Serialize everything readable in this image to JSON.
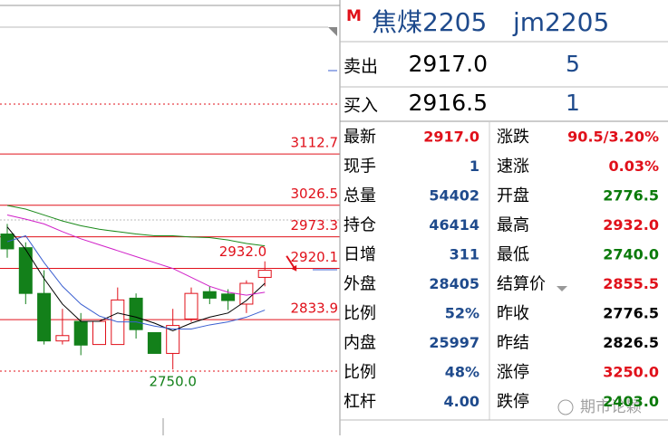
{
  "header": {
    "flag": "M",
    "title": "焦煤2205",
    "code": "jm2205"
  },
  "quote": {
    "sell": {
      "label": "卖出",
      "price": "2917.0",
      "volume": "5"
    },
    "buy": {
      "label": "买入",
      "price": "2916.5",
      "volume": "1"
    }
  },
  "stats": {
    "rows": [
      [
        {
          "label": "最新",
          "value": "2917.0",
          "color": "#e0101a"
        },
        {
          "label": "涨跌",
          "value": "90.5/3.20%",
          "color": "#e0101a"
        }
      ],
      [
        {
          "label": "现手",
          "value": "1",
          "color": "#1e4a8c"
        },
        {
          "label": "速涨",
          "value": "0.03%",
          "color": "#e0101a"
        }
      ],
      [
        {
          "label": "总量",
          "value": "54402",
          "color": "#1e4a8c"
        },
        {
          "label": "开盘",
          "value": "2776.5",
          "color": "#0a7a0a"
        }
      ],
      [
        {
          "label": "持仓",
          "value": "46414",
          "color": "#1e4a8c"
        },
        {
          "label": "最高",
          "value": "2932.0",
          "color": "#e0101a"
        }
      ],
      [
        {
          "label": "日增",
          "value": "311",
          "color": "#1e4a8c"
        },
        {
          "label": "最低",
          "value": "2740.0",
          "color": "#0a7a0a"
        }
      ],
      [
        {
          "label": "外盘",
          "value": "28405",
          "color": "#1e4a8c"
        },
        {
          "label": "结算价",
          "value": "2855.5",
          "color": "#e0101a"
        }
      ],
      [
        {
          "label": "比例",
          "value": "52%",
          "color": "#1e4a8c"
        },
        {
          "label": "昨收",
          "value": "2776.5",
          "color": "#000000"
        }
      ],
      [
        {
          "label": "内盘",
          "value": "25997",
          "color": "#1e4a8c"
        },
        {
          "label": "昨结",
          "value": "2826.5",
          "color": "#000000"
        }
      ],
      [
        {
          "label": "比例",
          "value": "48%",
          "color": "#1e4a8c"
        },
        {
          "label": "涨停",
          "value": "3250.0",
          "color": "#e0101a"
        }
      ],
      [
        {
          "label": "杠杆",
          "value": "4.00",
          "color": "#1e4a8c"
        },
        {
          "label": "跌停",
          "value": "2403.0",
          "color": "#0a7a0a"
        }
      ]
    ]
  },
  "chart": {
    "type": "candlestick",
    "ylim": [
      2639,
      3372
    ],
    "up_color": "#e0101a",
    "down_color": "#13801a",
    "level_color": "#e0101a",
    "levels": [
      3112.7,
      3026.5,
      2973.3,
      2920.1,
      2833.9
    ],
    "high_label": {
      "value": 2932,
      "label": "2932.0"
    },
    "low_label": {
      "value": 2750,
      "label": "2750.0"
    },
    "candles": [
      {
        "open": 2978,
        "high": 2995,
        "low": 2938,
        "close": 2953
      },
      {
        "open": 2955,
        "high": 2964,
        "low": 2860,
        "close": 2878
      },
      {
        "open": 2878,
        "high": 2917,
        "low": 2792,
        "close": 2798
      },
      {
        "open": 2798,
        "high": 2852,
        "low": 2792,
        "close": 2807
      },
      {
        "open": 2831,
        "high": 2845,
        "low": 2774,
        "close": 2791
      },
      {
        "open": 2792,
        "high": 2831,
        "low": 2792,
        "close": 2831
      },
      {
        "open": 2792,
        "high": 2888,
        "low": 2792,
        "close": 2867
      },
      {
        "open": 2870,
        "high": 2878,
        "low": 2802,
        "close": 2817
      },
      {
        "open": 2812,
        "high": 2812,
        "low": 2777,
        "close": 2777
      },
      {
        "open": 2777,
        "high": 2852,
        "low": 2750,
        "close": 2824
      },
      {
        "open": 2835,
        "high": 2888,
        "low": 2830,
        "close": 2878
      },
      {
        "open": 2881,
        "high": 2890,
        "low": 2860,
        "close": 2870
      },
      {
        "open": 2877,
        "high": 2885,
        "low": 2850,
        "close": 2866
      },
      {
        "open": 2860,
        "high": 2900,
        "low": 2845,
        "close": 2895
      },
      {
        "open": 2905,
        "high": 2932,
        "low": 2890,
        "close": 2917
      }
    ],
    "ma": [
      {
        "color": "#000000",
        "values": [
          2990,
          2952,
          2903,
          2860,
          2831,
          2831,
          2845,
          2838,
          2828,
          2815,
          2828,
          2838,
          2845,
          2866,
          2895
        ]
      },
      {
        "color": "#3a5fd0",
        "values": [
          2965,
          2975,
          2930,
          2890,
          2860,
          2840,
          2830,
          2830,
          2823,
          2818,
          2818,
          2825,
          2830,
          2838,
          2850
        ]
      },
      {
        "color": "#d020c8",
        "values": [
          3010,
          3003,
          2995,
          2982,
          2970,
          2960,
          2950,
          2940,
          2930,
          2920,
          2905,
          2890,
          2880,
          2875,
          2880
        ]
      },
      {
        "color": "#1a8a1a",
        "values": [
          3026,
          3020,
          3010,
          3000,
          2992,
          2986,
          2982,
          2978,
          2975,
          2975,
          2973,
          2972,
          2968,
          2962,
          2958
        ]
      }
    ]
  },
  "watermark": "期市论颖"
}
